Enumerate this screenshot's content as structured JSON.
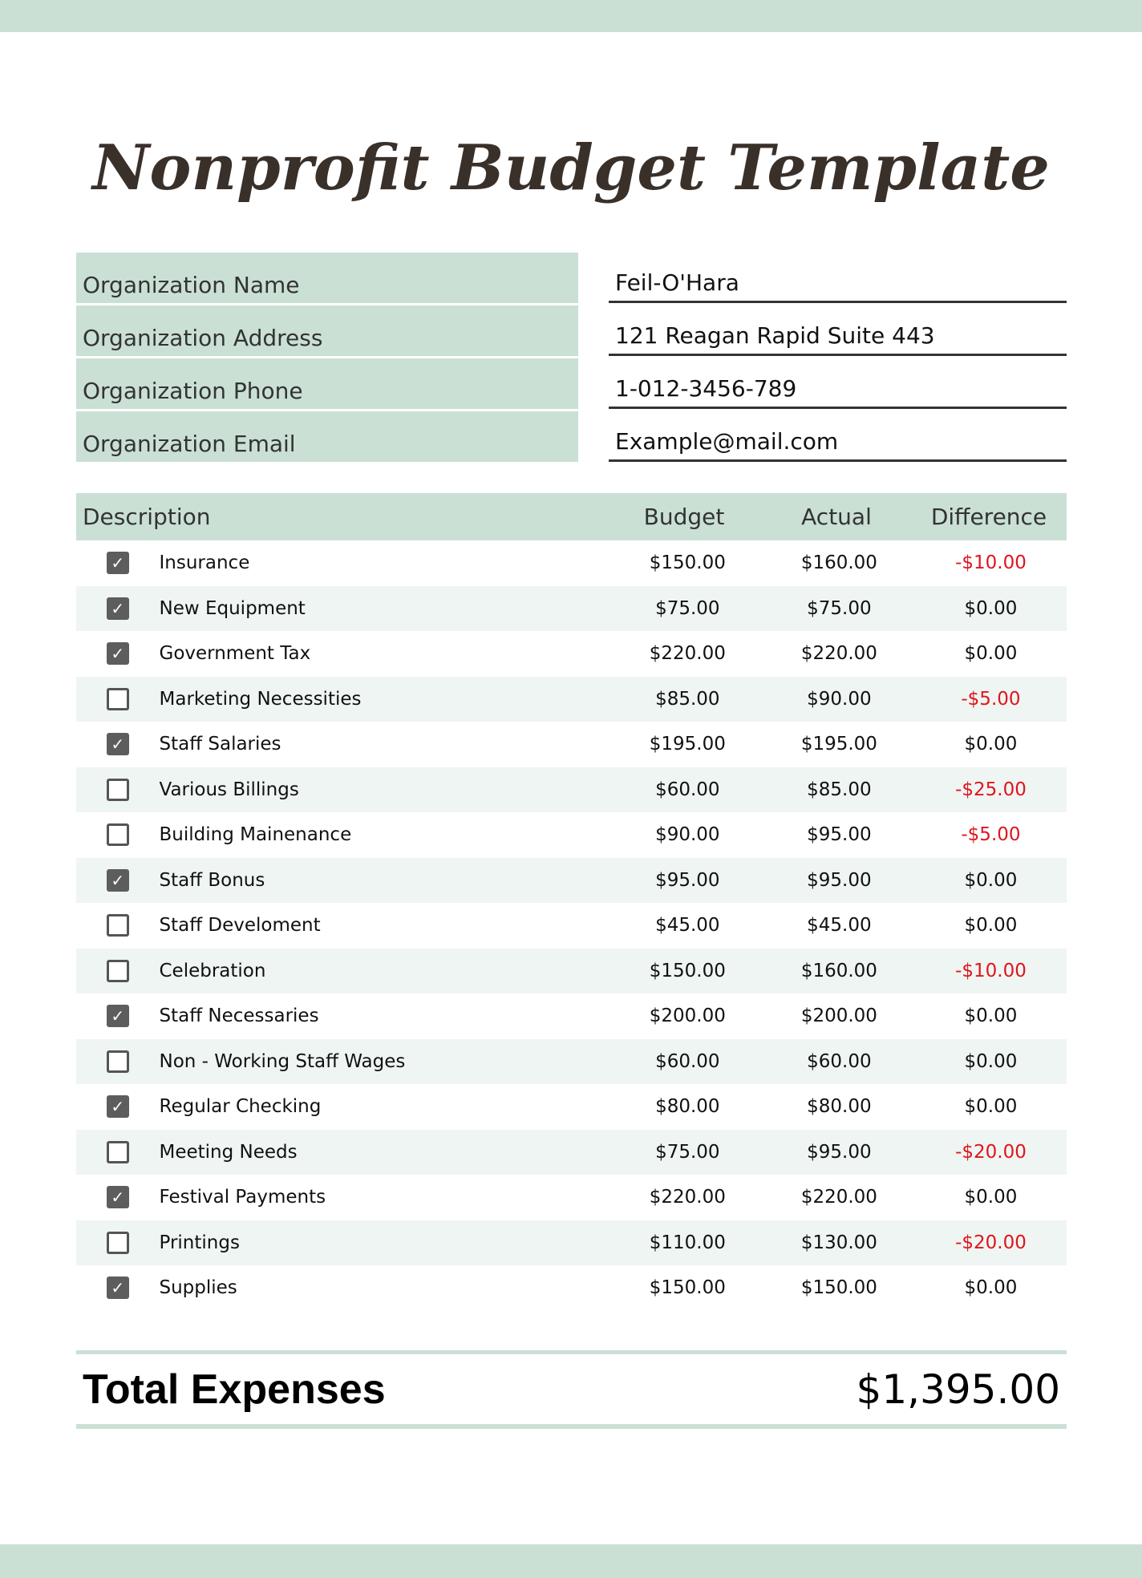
{
  "title": "Nonprofit Budget Template",
  "info": [
    {
      "label": "Organization Name",
      "value": "Feil-O'Hara"
    },
    {
      "label": "Organization Address",
      "value": "121 Reagan Rapid Suite 443"
    },
    {
      "label": "Organization Phone",
      "value": "1-012-3456-789"
    },
    {
      "label": "Organization Email",
      "value": "Example@mail.com"
    }
  ],
  "table": {
    "headers": {
      "description": "Description",
      "budget": "Budget",
      "actual": "Actual",
      "difference": "Difference"
    },
    "rows": [
      {
        "checked": true,
        "description": "Insurance",
        "budget": "$150.00",
        "actual": "$160.00",
        "difference": "-$10.00"
      },
      {
        "checked": true,
        "description": "New Equipment",
        "budget": "$75.00",
        "actual": "$75.00",
        "difference": "$0.00"
      },
      {
        "checked": true,
        "description": "Government Tax",
        "budget": "$220.00",
        "actual": "$220.00",
        "difference": "$0.00"
      },
      {
        "checked": false,
        "description": "Marketing Necessities",
        "budget": "$85.00",
        "actual": "$90.00",
        "difference": "-$5.00"
      },
      {
        "checked": true,
        "description": "Staff Salaries",
        "budget": "$195.00",
        "actual": "$195.00",
        "difference": "$0.00"
      },
      {
        "checked": false,
        "description": "Various Billings",
        "budget": "$60.00",
        "actual": "$85.00",
        "difference": "-$25.00"
      },
      {
        "checked": false,
        "description": "Building Mainenance",
        "budget": "$90.00",
        "actual": "$95.00",
        "difference": "-$5.00"
      },
      {
        "checked": true,
        "description": "Staff Bonus",
        "budget": "$95.00",
        "actual": "$95.00",
        "difference": "$0.00"
      },
      {
        "checked": false,
        "description": "Staff Develoment",
        "budget": "$45.00",
        "actual": "$45.00",
        "difference": "$0.00"
      },
      {
        "checked": false,
        "description": "Celebration",
        "budget": "$150.00",
        "actual": "$160.00",
        "difference": "-$10.00"
      },
      {
        "checked": true,
        "description": "Staff Necessaries",
        "budget": "$200.00",
        "actual": "$200.00",
        "difference": "$0.00"
      },
      {
        "checked": false,
        "description": "Non - Working Staff Wages",
        "budget": "$60.00",
        "actual": "$60.00",
        "difference": "$0.00"
      },
      {
        "checked": true,
        "description": "Regular Checking",
        "budget": "$80.00",
        "actual": "$80.00",
        "difference": "$0.00"
      },
      {
        "checked": false,
        "description": "Meeting Needs",
        "budget": "$75.00",
        "actual": "$95.00",
        "difference": "-$20.00"
      },
      {
        "checked": true,
        "description": "Festival Payments",
        "budget": "$220.00",
        "actual": "$220.00",
        "difference": "$0.00"
      },
      {
        "checked": false,
        "description": "Printings",
        "budget": "$110.00",
        "actual": "$130.00",
        "difference": "-$20.00"
      },
      {
        "checked": true,
        "description": "Supplies",
        "budget": "$150.00",
        "actual": "$150.00",
        "difference": "$0.00"
      }
    ]
  },
  "total": {
    "label": "Total Expenses",
    "value": "$1,395.00"
  },
  "colors": {
    "accent": "#cae0d5",
    "alt_row": "#eef5f2",
    "negative": "#e0141e",
    "checkbox": "#5d5d5d"
  }
}
